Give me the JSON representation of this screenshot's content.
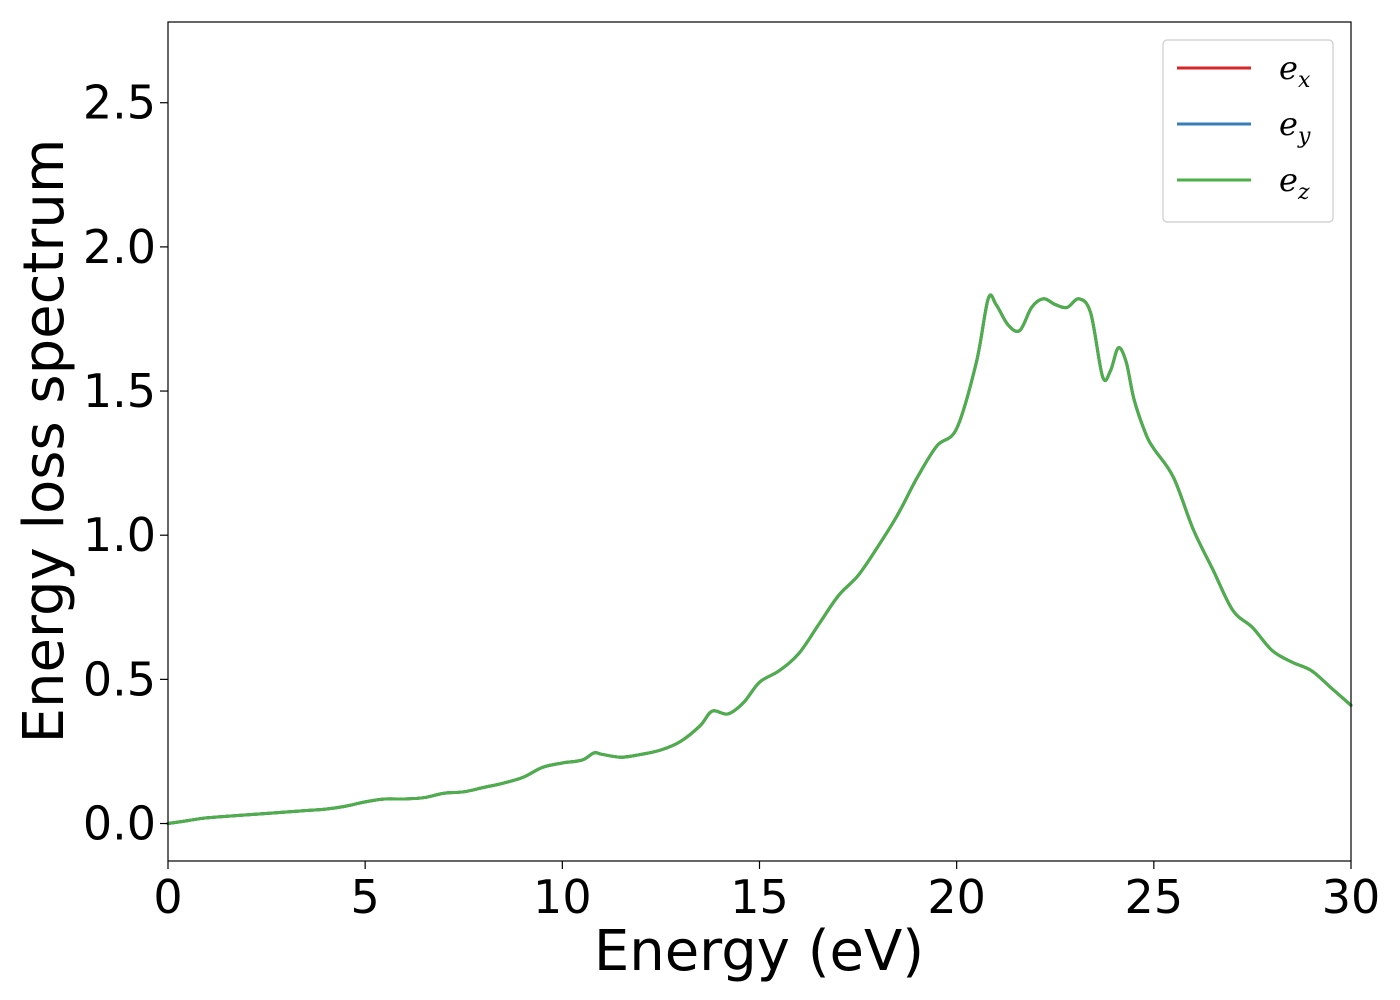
{
  "chart_data": {
    "type": "line",
    "title": "",
    "xlabel": "Energy (eV)",
    "ylabel": "Energy loss spectrum",
    "xlim": [
      0,
      30
    ],
    "ylim": [
      -0.13,
      2.78
    ],
    "xticks": [
      0,
      5,
      10,
      15,
      20,
      25,
      30
    ],
    "xtick_labels": [
      "0",
      "5",
      "10",
      "15",
      "20",
      "25",
      "30"
    ],
    "yticks": [
      0.0,
      0.5,
      1.0,
      1.5,
      2.0,
      2.5
    ],
    "ytick_labels": [
      "0.0",
      "0.5",
      "1.0",
      "1.5",
      "2.0",
      "2.5"
    ],
    "grid": false,
    "legend_position": "top-right",
    "legend": [
      {
        "base": "e",
        "sub": "x",
        "color": "#d62728"
      },
      {
        "base": "e",
        "sub": "y",
        "color": "#377eb8"
      },
      {
        "base": "e",
        "sub": "z",
        "color": "#4daf4a"
      }
    ],
    "x": [
      0,
      0.5,
      1.0,
      2.0,
      3.0,
      3.5,
      4.0,
      4.5,
      5.0,
      5.5,
      6.0,
      6.5,
      7.0,
      7.5,
      8.0,
      8.5,
      9.0,
      9.5,
      10.0,
      10.5,
      10.8,
      11.0,
      11.5,
      12.0,
      12.5,
      13.0,
      13.5,
      13.8,
      14.2,
      14.6,
      15.0,
      15.5,
      16.0,
      16.5,
      17.0,
      17.5,
      18.0,
      18.5,
      19.0,
      19.5,
      20.0,
      20.5,
      20.8,
      21.0,
      21.3,
      21.6,
      21.9,
      22.2,
      22.5,
      22.8,
      23.1,
      23.4,
      23.7,
      23.9,
      24.1,
      24.3,
      24.5,
      24.8,
      25.0,
      25.5,
      26.0,
      26.5,
      27.0,
      27.5,
      28.0,
      28.5,
      29.0,
      29.5,
      30.0
    ],
    "series": [
      {
        "name": "e_x",
        "color": "#d62728",
        "values": [
          0.0,
          0.01,
          0.02,
          0.03,
          0.04,
          0.045,
          0.05,
          0.06,
          0.075,
          0.085,
          0.085,
          0.09,
          0.105,
          0.11,
          0.125,
          0.14,
          0.16,
          0.195,
          0.21,
          0.22,
          0.245,
          0.24,
          0.23,
          0.24,
          0.255,
          0.285,
          0.34,
          0.39,
          0.38,
          0.42,
          0.49,
          0.53,
          0.59,
          0.69,
          0.79,
          0.86,
          0.96,
          1.07,
          1.2,
          1.31,
          1.37,
          1.6,
          1.82,
          1.8,
          1.73,
          1.71,
          1.79,
          1.82,
          1.8,
          1.79,
          1.82,
          1.77,
          1.55,
          1.57,
          1.65,
          1.6,
          1.47,
          1.35,
          1.3,
          1.2,
          1.02,
          0.88,
          0.74,
          0.68,
          0.6,
          0.56,
          0.53,
          0.47,
          0.41
        ]
      },
      {
        "name": "e_y",
        "color": "#377eb8",
        "values": [
          0.0,
          0.01,
          0.02,
          0.03,
          0.04,
          0.045,
          0.05,
          0.06,
          0.075,
          0.085,
          0.085,
          0.09,
          0.105,
          0.11,
          0.125,
          0.14,
          0.16,
          0.195,
          0.21,
          0.22,
          0.245,
          0.24,
          0.23,
          0.24,
          0.255,
          0.285,
          0.34,
          0.39,
          0.38,
          0.42,
          0.49,
          0.53,
          0.59,
          0.69,
          0.79,
          0.86,
          0.96,
          1.07,
          1.2,
          1.31,
          1.37,
          1.6,
          1.82,
          1.8,
          1.73,
          1.71,
          1.79,
          1.82,
          1.8,
          1.79,
          1.82,
          1.77,
          1.55,
          1.57,
          1.65,
          1.6,
          1.47,
          1.35,
          1.3,
          1.2,
          1.02,
          0.88,
          0.74,
          0.68,
          0.6,
          0.56,
          0.53,
          0.47,
          0.41
        ]
      },
      {
        "name": "e_z",
        "color": "#4daf4a",
        "values": [
          0.0,
          0.01,
          0.02,
          0.03,
          0.04,
          0.045,
          0.05,
          0.06,
          0.075,
          0.085,
          0.085,
          0.09,
          0.105,
          0.11,
          0.125,
          0.14,
          0.16,
          0.195,
          0.21,
          0.22,
          0.245,
          0.24,
          0.23,
          0.24,
          0.255,
          0.285,
          0.34,
          0.39,
          0.38,
          0.42,
          0.49,
          0.53,
          0.59,
          0.69,
          0.79,
          0.86,
          0.96,
          1.07,
          1.2,
          1.31,
          1.37,
          1.6,
          1.82,
          1.8,
          1.73,
          1.71,
          1.79,
          1.82,
          1.8,
          1.79,
          1.82,
          1.77,
          1.55,
          1.57,
          1.65,
          1.6,
          1.47,
          1.35,
          1.3,
          1.2,
          1.02,
          0.88,
          0.74,
          0.68,
          0.6,
          0.56,
          0.53,
          0.47,
          0.41
        ]
      }
    ]
  }
}
